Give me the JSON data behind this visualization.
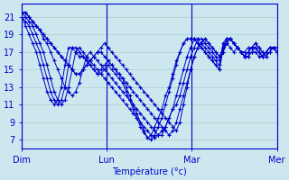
{
  "xlabel": "Température (°c)",
  "bg_color": "#cce8ee",
  "grid_color": "#aacccc",
  "line_color": "#0000cc",
  "marker": "+",
  "yticks": [
    7,
    9,
    11,
    13,
    15,
    17,
    19,
    21
  ],
  "ylim": [
    6.0,
    22.5
  ],
  "xlim": [
    0,
    72
  ],
  "xtick_positions": [
    0,
    24,
    48,
    72
  ],
  "xtick_labels": [
    "Dim",
    "Lun",
    "Mar",
    "Mer"
  ],
  "series": [
    [
      21.5,
      21.5,
      21.0,
      20.5,
      20.0,
      19.5,
      19.0,
      18.5,
      18.0,
      17.5,
      17.0,
      16.5,
      16.0,
      15.5,
      15.0,
      14.5,
      14.5,
      15.0,
      15.5,
      16.0,
      16.5,
      17.0,
      17.5,
      18.0,
      17.5,
      17.0,
      16.5,
      16.0,
      15.5,
      15.0,
      14.5,
      14.0,
      13.5,
      13.0,
      12.5,
      12.0,
      11.5,
      11.0,
      10.5,
      10.0,
      9.5,
      9.0,
      8.5,
      8.0,
      9.0,
      11.0,
      13.0,
      15.0,
      16.5,
      17.5,
      18.0,
      18.5,
      18.0,
      17.5,
      17.0,
      16.5,
      17.5,
      18.0,
      17.5,
      17.0,
      17.5,
      17.0,
      16.5,
      16.5,
      17.0,
      17.0,
      16.5,
      16.5,
      17.0,
      17.5,
      17.5,
      17.0
    ],
    [
      21.5,
      21.5,
      21.0,
      20.5,
      20.0,
      19.5,
      19.0,
      18.5,
      18.0,
      17.5,
      17.0,
      16.5,
      16.0,
      15.5,
      15.0,
      14.5,
      14.5,
      15.0,
      15.5,
      16.0,
      16.5,
      17.0,
      17.0,
      16.5,
      16.0,
      15.5,
      15.0,
      14.5,
      14.0,
      13.5,
      13.0,
      12.5,
      12.0,
      11.5,
      11.0,
      10.5,
      10.0,
      9.5,
      9.0,
      8.5,
      8.0,
      7.5,
      8.0,
      9.0,
      10.5,
      12.0,
      13.5,
      15.0,
      16.5,
      17.5,
      18.0,
      18.5,
      18.0,
      17.5,
      17.0,
      16.5,
      17.0,
      18.0,
      18.5,
      18.0,
      17.5,
      17.0,
      16.5,
      16.5,
      17.0,
      17.5,
      17.0,
      16.5,
      17.0,
      17.5,
      17.5,
      17.0
    ],
    [
      21.5,
      21.5,
      21.0,
      20.5,
      20.0,
      19.5,
      18.5,
      18.0,
      17.0,
      16.0,
      15.0,
      14.0,
      13.0,
      12.5,
      12.0,
      12.5,
      13.5,
      15.0,
      16.5,
      17.0,
      16.5,
      16.0,
      15.5,
      15.0,
      14.5,
      14.0,
      13.5,
      13.0,
      12.5,
      12.0,
      11.5,
      11.0,
      10.5,
      10.0,
      9.5,
      9.0,
      8.5,
      8.0,
      7.5,
      7.5,
      8.5,
      9.5,
      10.5,
      11.0,
      12.0,
      13.5,
      15.0,
      16.5,
      17.5,
      18.5,
      18.5,
      18.0,
      17.5,
      17.0,
      16.5,
      16.0,
      17.0,
      18.0,
      18.5,
      18.0,
      17.5,
      17.0,
      16.5,
      17.0,
      17.5,
      17.5,
      17.0,
      16.5,
      17.0,
      17.5,
      17.5,
      17.0
    ],
    [
      21.5,
      21.0,
      20.5,
      20.0,
      19.0,
      18.0,
      17.0,
      15.5,
      14.0,
      12.5,
      11.5,
      11.0,
      11.5,
      13.0,
      15.0,
      17.0,
      17.5,
      17.0,
      16.5,
      16.0,
      15.5,
      15.0,
      14.5,
      14.0,
      13.5,
      13.0,
      12.5,
      12.0,
      11.5,
      11.0,
      10.5,
      10.0,
      9.5,
      9.0,
      8.5,
      8.0,
      7.5,
      7.2,
      7.5,
      8.0,
      8.5,
      9.5,
      10.5,
      12.0,
      13.5,
      15.0,
      16.5,
      17.5,
      18.5,
      18.5,
      18.0,
      17.5,
      17.0,
      16.5,
      16.0,
      15.5,
      17.0,
      18.5,
      18.5,
      18.0,
      17.5,
      17.0,
      16.5,
      17.0,
      17.5,
      17.5,
      17.0,
      16.5,
      17.0,
      17.5,
      17.5,
      17.0
    ],
    [
      21.0,
      20.5,
      20.0,
      19.0,
      18.0,
      17.0,
      15.5,
      14.0,
      12.5,
      11.5,
      11.0,
      11.5,
      13.0,
      15.5,
      17.5,
      17.5,
      17.0,
      16.5,
      16.0,
      15.5,
      15.0,
      14.5,
      14.5,
      15.0,
      15.5,
      15.0,
      14.5,
      14.0,
      13.5,
      12.5,
      11.5,
      10.5,
      9.5,
      8.5,
      7.8,
      7.2,
      7.5,
      8.5,
      9.5,
      10.5,
      12.0,
      13.0,
      14.5,
      16.0,
      17.0,
      18.0,
      18.5,
      18.5,
      18.5,
      18.0,
      17.5,
      17.0,
      16.5,
      16.0,
      15.5,
      15.0,
      17.5,
      18.5,
      18.5,
      18.0,
      17.5,
      17.0,
      16.5,
      17.0,
      17.5,
      18.0,
      17.5,
      17.0,
      16.5,
      17.0,
      17.5,
      17.5
    ],
    [
      21.0,
      20.0,
      19.0,
      18.0,
      17.0,
      15.5,
      14.0,
      12.5,
      11.5,
      11.0,
      11.5,
      13.0,
      15.5,
      17.5,
      17.5,
      17.0,
      16.5,
      16.5,
      16.0,
      15.5,
      15.0,
      14.5,
      15.0,
      15.5,
      16.0,
      15.5,
      15.0,
      14.5,
      14.0,
      13.0,
      12.0,
      11.0,
      10.0,
      9.0,
      8.0,
      7.2,
      7.0,
      7.5,
      8.5,
      9.5,
      11.0,
      12.5,
      14.0,
      15.5,
      17.0,
      18.0,
      18.5,
      18.5,
      18.5,
      18.0,
      17.5,
      17.0,
      16.5,
      16.0,
      15.5,
      15.0,
      18.0,
      18.5,
      18.5,
      18.0,
      17.5,
      17.0,
      17.0,
      17.5,
      17.5,
      18.0,
      17.5,
      17.0,
      16.5,
      17.0,
      17.5,
      17.5
    ]
  ]
}
